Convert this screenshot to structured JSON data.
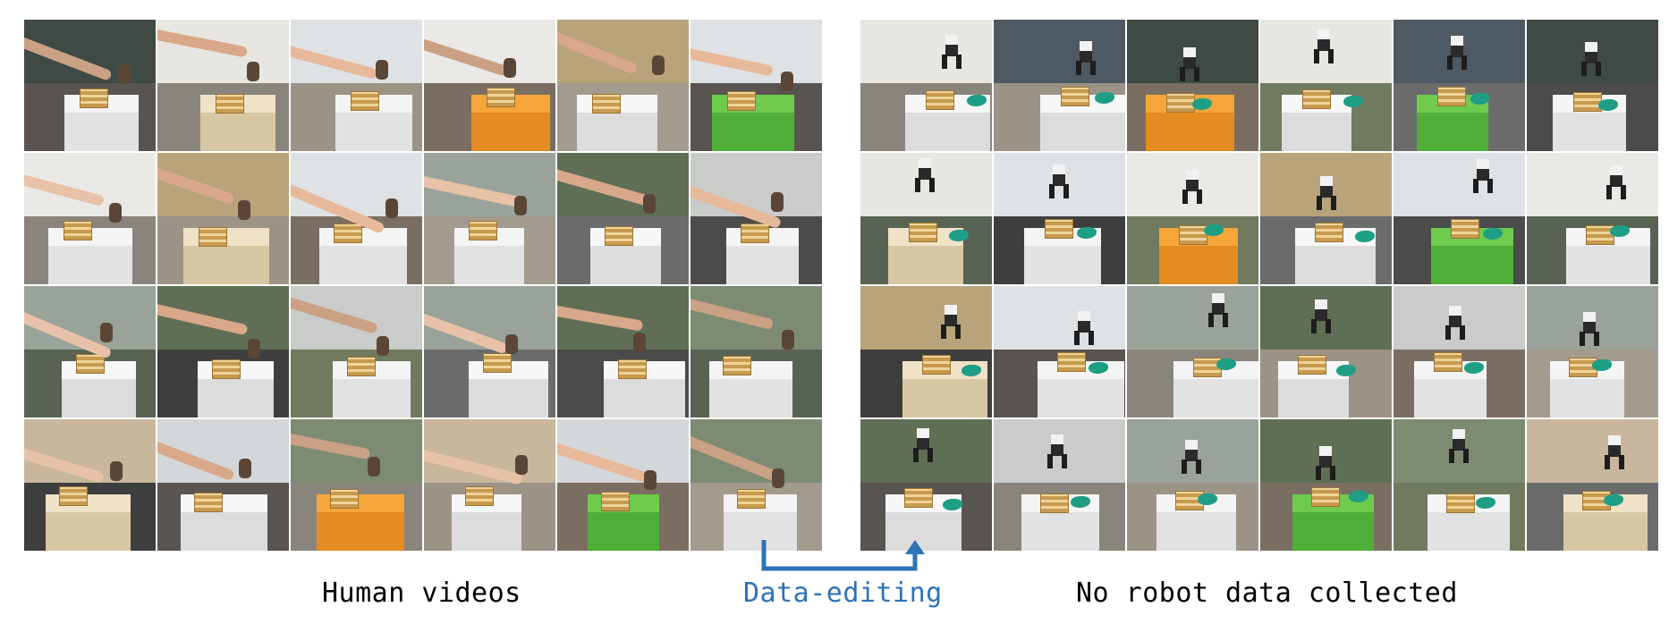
{
  "captions": {
    "left": "Human videos",
    "middle": "Data-editing",
    "right": "No robot data collected"
  },
  "colors": {
    "accent": "#2e74b5",
    "caption_text": "#000000"
  },
  "panels": [
    {
      "id": "human-videos",
      "rows": 4,
      "cols": 6,
      "frame_subject": "human-hand"
    },
    {
      "id": "robot-videos",
      "rows": 4,
      "cols": 6,
      "frame_subject": "robot-gripper"
    }
  ],
  "icons": [
    "arrow-icon"
  ]
}
